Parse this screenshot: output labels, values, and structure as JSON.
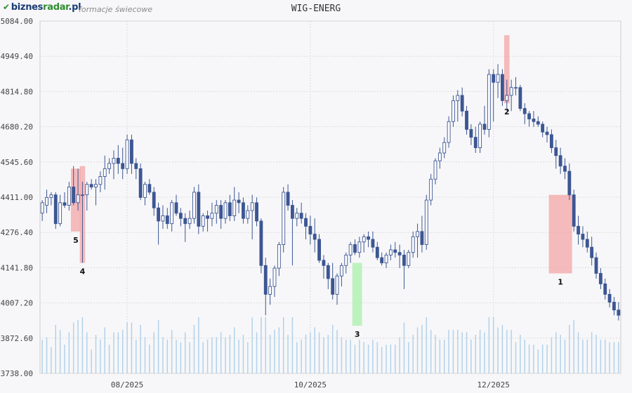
{
  "header": {
    "logo_prefix": "biznes",
    "logo_accent": "radar",
    "logo_suffix": ".pl",
    "subtitle": "formacje świecowe"
  },
  "chart_data": {
    "type": "candlestick",
    "title": "WIG-ENERG",
    "y_ticks": [
      "5084.00",
      "4949.40",
      "4814.80",
      "4680.20",
      "4545.60",
      "4411.00",
      "4276.40",
      "4141.80",
      "4007.20",
      "3872.60",
      "3738.00"
    ],
    "ylim": [
      3738,
      5084
    ],
    "x_ticks": [
      {
        "label": "08/2025",
        "index": 19
      },
      {
        "label": "10/2025",
        "index": 60
      },
      {
        "label": "12/2025",
        "index": 101
      }
    ],
    "grid": true,
    "colors": {
      "bull_fill": "#ffffff",
      "bear_fill": "#3d5693",
      "outline": "#3d5693",
      "volume": "#b3d1ea",
      "bear_pattern": "#f4a6a6",
      "bull_pattern": "#a9f0a9",
      "grid": "#dddddd"
    },
    "candles": [
      [
        4350,
        4400,
        4320,
        4390
      ],
      [
        4380,
        4440,
        4350,
        4410
      ],
      [
        4410,
        4430,
        4380,
        4420
      ],
      [
        4420,
        4430,
        4290,
        4310
      ],
      [
        4310,
        4420,
        4300,
        4390
      ],
      [
        4390,
        4430,
        4370,
        4380
      ],
      [
        4380,
        4470,
        4360,
        4450
      ],
      [
        4450,
        4530,
        4380,
        4390
      ],
      [
        4390,
        4520,
        4360,
        4420
      ],
      [
        4420,
        4470,
        4160,
        4420
      ],
      [
        4420,
        4470,
        4360,
        4460
      ],
      [
        4460,
        4480,
        4440,
        4450
      ],
      [
        4450,
        4480,
        4380,
        4460
      ],
      [
        4460,
        4510,
        4430,
        4490
      ],
      [
        4490,
        4570,
        4440,
        4520
      ],
      [
        4520,
        4560,
        4500,
        4540
      ],
      [
        4540,
        4590,
        4480,
        4560
      ],
      [
        4560,
        4610,
        4500,
        4540
      ],
      [
        4540,
        4600,
        4480,
        4520
      ],
      [
        4520,
        4650,
        4500,
        4630
      ],
      [
        4630,
        4650,
        4500,
        4540
      ],
      [
        4540,
        4560,
        4480,
        4520
      ],
      [
        4520,
        4540,
        4400,
        4410
      ],
      [
        4410,
        4470,
        4380,
        4460
      ],
      [
        4460,
        4480,
        4420,
        4430
      ],
      [
        4430,
        4450,
        4340,
        4370
      ],
      [
        4370,
        4390,
        4230,
        4320
      ],
      [
        4320,
        4380,
        4290,
        4340
      ],
      [
        4340,
        4370,
        4290,
        4310
      ],
      [
        4310,
        4400,
        4280,
        4390
      ],
      [
        4390,
        4420,
        4340,
        4350
      ],
      [
        4350,
        4370,
        4300,
        4330
      ],
      [
        4330,
        4350,
        4240,
        4310
      ],
      [
        4310,
        4360,
        4290,
        4330
      ],
      [
        4330,
        4450,
        4310,
        4430
      ],
      [
        4430,
        4460,
        4270,
        4300
      ],
      [
        4300,
        4350,
        4280,
        4340
      ],
      [
        4340,
        4360,
        4280,
        4330
      ],
      [
        4330,
        4390,
        4300,
        4350
      ],
      [
        4350,
        4400,
        4310,
        4380
      ],
      [
        4380,
        4400,
        4290,
        4330
      ],
      [
        4330,
        4400,
        4310,
        4390
      ],
      [
        4390,
        4420,
        4320,
        4340
      ],
      [
        4340,
        4450,
        4320,
        4400
      ],
      [
        4400,
        4430,
        4350,
        4390
      ],
      [
        4390,
        4410,
        4310,
        4330
      ],
      [
        4330,
        4380,
        4310,
        4360
      ],
      [
        4360,
        4420,
        4250,
        4390
      ],
      [
        4390,
        4410,
        4300,
        4320
      ],
      [
        4320,
        4330,
        4120,
        4150
      ],
      [
        4150,
        4180,
        3960,
        4040
      ],
      [
        4040,
        4100,
        4000,
        4070
      ],
      [
        4070,
        4150,
        4030,
        4140
      ],
      [
        4140,
        4240,
        4110,
        4230
      ],
      [
        4230,
        4450,
        4200,
        4430
      ],
      [
        4430,
        4460,
        4360,
        4380
      ],
      [
        4380,
        4400,
        4150,
        4330
      ],
      [
        4330,
        4370,
        4300,
        4350
      ],
      [
        4350,
        4390,
        4310,
        4330
      ],
      [
        4330,
        4350,
        4250,
        4300
      ],
      [
        4300,
        4340,
        4230,
        4270
      ],
      [
        4270,
        4330,
        4200,
        4250
      ],
      [
        4250,
        4270,
        4160,
        4170
      ],
      [
        4170,
        4190,
        4100,
        4150
      ],
      [
        4150,
        4160,
        4060,
        4100
      ],
      [
        4100,
        4160,
        4020,
        4040
      ],
      [
        4040,
        4120,
        4000,
        4110
      ],
      [
        4110,
        4160,
        4070,
        4150
      ],
      [
        4150,
        4200,
        4120,
        4190
      ],
      [
        4190,
        4240,
        4160,
        4230
      ],
      [
        4230,
        4250,
        4190,
        4200
      ],
      [
        4200,
        4260,
        4180,
        4240
      ],
      [
        4240,
        4270,
        4200,
        4260
      ],
      [
        4260,
        4280,
        4220,
        4250
      ],
      [
        4250,
        4280,
        4200,
        4220
      ],
      [
        4220,
        4240,
        4170,
        4180
      ],
      [
        4180,
        4200,
        4150,
        4160
      ],
      [
        4160,
        4200,
        4140,
        4190
      ],
      [
        4190,
        4230,
        4170,
        4210
      ],
      [
        4210,
        4240,
        4180,
        4200
      ],
      [
        4200,
        4230,
        4140,
        4190
      ],
      [
        4190,
        4210,
        4060,
        4150
      ],
      [
        4150,
        4210,
        4140,
        4200
      ],
      [
        4200,
        4280,
        4180,
        4260
      ],
      [
        4260,
        4310,
        4180,
        4280
      ],
      [
        4280,
        4340,
        4200,
        4230
      ],
      [
        4230,
        4420,
        4210,
        4400
      ],
      [
        4400,
        4500,
        4380,
        4480
      ],
      [
        4480,
        4560,
        4460,
        4550
      ],
      [
        4550,
        4600,
        4520,
        4580
      ],
      [
        4580,
        4640,
        4560,
        4620
      ],
      [
        4620,
        4720,
        4600,
        4700
      ],
      [
        4700,
        4800,
        4680,
        4780
      ],
      [
        4780,
        4820,
        4700,
        4800
      ],
      [
        4800,
        4830,
        4720,
        4740
      ],
      [
        4740,
        4760,
        4650,
        4670
      ],
      [
        4670,
        4690,
        4610,
        4640
      ],
      [
        4640,
        4680,
        4580,
        4600
      ],
      [
        4600,
        4700,
        4580,
        4690
      ],
      [
        4690,
        4760,
        4650,
        4670
      ],
      [
        4670,
        4900,
        4640,
        4880
      ],
      [
        4880,
        4900,
        4700,
        4850
      ],
      [
        4850,
        4920,
        4790,
        4880
      ],
      [
        4880,
        4900,
        4760,
        4780
      ],
      [
        4780,
        4860,
        4740,
        4800
      ],
      [
        4800,
        4860,
        4740,
        4830
      ],
      [
        4830,
        4870,
        4800,
        4830
      ],
      [
        4830,
        4840,
        4740,
        4750
      ],
      [
        4750,
        4770,
        4690,
        4730
      ],
      [
        4730,
        4740,
        4680,
        4710
      ],
      [
        4710,
        4740,
        4680,
        4700
      ],
      [
        4700,
        4720,
        4680,
        4690
      ],
      [
        4690,
        4700,
        4640,
        4660
      ],
      [
        4660,
        4680,
        4620,
        4650
      ],
      [
        4650,
        4670,
        4580,
        4600
      ],
      [
        4600,
        4630,
        4520,
        4570
      ],
      [
        4570,
        4600,
        4500,
        4530
      ],
      [
        4530,
        4560,
        4480,
        4510
      ],
      [
        4510,
        4540,
        4400,
        4420
      ],
      [
        4420,
        4440,
        4280,
        4300
      ],
      [
        4300,
        4340,
        4230,
        4270
      ],
      [
        4270,
        4300,
        4220,
        4250
      ],
      [
        4250,
        4280,
        4200,
        4220
      ],
      [
        4220,
        4260,
        4150,
        4180
      ],
      [
        4180,
        4200,
        4100,
        4120
      ],
      [
        4120,
        4140,
        4060,
        4080
      ],
      [
        4080,
        4100,
        4020,
        4040
      ],
      [
        4040,
        4060,
        3990,
        4010
      ],
      [
        4010,
        4030,
        3960,
        3980
      ],
      [
        3980,
        4010,
        3940,
        3960
      ]
    ],
    "patterns": [
      {
        "label": "5",
        "color": "bear",
        "from": 7,
        "to": 8,
        "low": 4280,
        "high": 4520
      },
      {
        "label": "4",
        "color": "bear",
        "from": 9,
        "to": 9,
        "low": 4160,
        "high": 4530
      },
      {
        "label": "3",
        "color": "bull",
        "from": 70,
        "to": 71,
        "low": 3920,
        "high": 4160
      },
      {
        "label": "2",
        "color": "bear",
        "from": 104,
        "to": 104,
        "low": 4770,
        "high": 5030
      },
      {
        "label": "1",
        "color": "bear",
        "from": 114,
        "to": 118,
        "low": 4120,
        "high": 4420
      }
    ]
  }
}
